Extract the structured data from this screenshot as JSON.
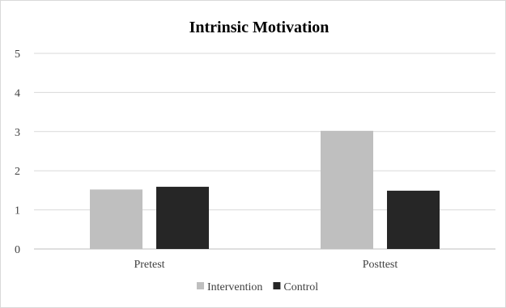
{
  "chart_data": {
    "type": "bar",
    "title": "Intrinsic Motivation",
    "categories": [
      "Pretest",
      "Posttest"
    ],
    "series": [
      {
        "name": "Intervention",
        "values": [
          1.52,
          3.02
        ],
        "color": "#bfbfbf"
      },
      {
        "name": "Control",
        "values": [
          1.59,
          1.49
        ],
        "color": "#262626"
      }
    ],
    "ylim": [
      0,
      5
    ],
    "yticks": [
      "0",
      "1",
      "2",
      "3",
      "4",
      "5"
    ],
    "grid": true,
    "legend": "bottom"
  }
}
